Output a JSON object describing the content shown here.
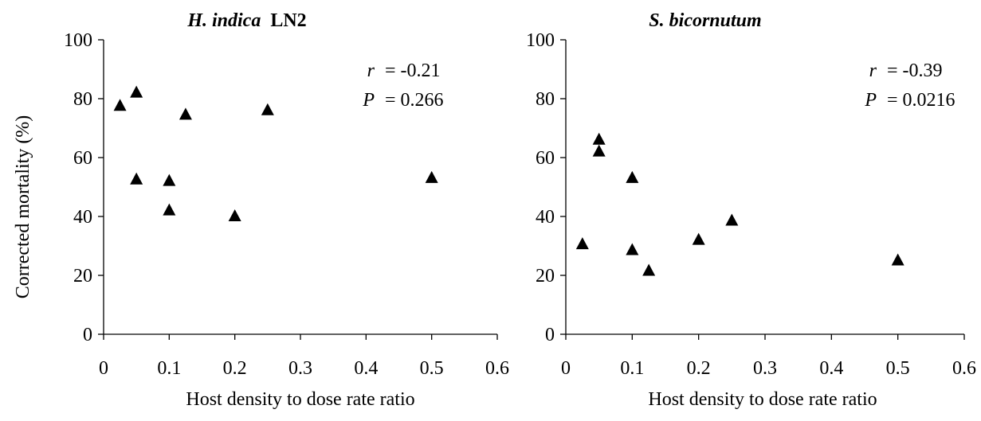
{
  "chart_data": [
    {
      "type": "scatter",
      "title": "H. indica LN2",
      "title_species": "H. indica",
      "title_strain": "LN2",
      "xlabel": "Host density to dose rate ratio",
      "ylabel": "Corrected mortality (%)",
      "xlim": [
        0,
        0.6
      ],
      "ylim": [
        0,
        100
      ],
      "xticks": [
        "0",
        "0.1",
        "0.2",
        "0.3",
        "0.4",
        "0.5",
        "0.6"
      ],
      "yticks": [
        "0",
        "20",
        "40",
        "60",
        "80",
        "100"
      ],
      "marker": "triangle",
      "grid": false,
      "annotations": {
        "r_label": "r",
        "r_value": "= -0.21",
        "p_label": "P",
        "p_value": "= 0.266"
      },
      "points": [
        {
          "x": 0.025,
          "y": 77.5
        },
        {
          "x": 0.05,
          "y": 82.0
        },
        {
          "x": 0.05,
          "y": 52.5
        },
        {
          "x": 0.1,
          "y": 52.0
        },
        {
          "x": 0.1,
          "y": 42.0
        },
        {
          "x": 0.125,
          "y": 74.5
        },
        {
          "x": 0.2,
          "y": 40.0
        },
        {
          "x": 0.25,
          "y": 76.0
        },
        {
          "x": 0.5,
          "y": 53.0
        }
      ]
    },
    {
      "type": "scatter",
      "title": "S. bicornutum",
      "title_species": "S. bicornutum",
      "title_strain": "",
      "xlabel": "Host density to dose rate ratio",
      "ylabel": "",
      "xlim": [
        0,
        0.6
      ],
      "ylim": [
        0,
        100
      ],
      "xticks": [
        "0",
        "0.1",
        "0.2",
        "0.3",
        "0.4",
        "0.5",
        "0.6"
      ],
      "yticks": [
        "0",
        "20",
        "40",
        "60",
        "80",
        "100"
      ],
      "marker": "triangle",
      "grid": false,
      "annotations": {
        "r_label": "r",
        "r_value": "= -0.39",
        "p_label": "P",
        "p_value": "= 0.0216"
      },
      "points": [
        {
          "x": 0.025,
          "y": 30.5
        },
        {
          "x": 0.05,
          "y": 66.0
        },
        {
          "x": 0.05,
          "y": 62.0
        },
        {
          "x": 0.1,
          "y": 53.0
        },
        {
          "x": 0.1,
          "y": 28.5
        },
        {
          "x": 0.125,
          "y": 21.5
        },
        {
          "x": 0.2,
          "y": 32.0
        },
        {
          "x": 0.25,
          "y": 38.5
        },
        {
          "x": 0.5,
          "y": 25.0
        }
      ]
    }
  ]
}
